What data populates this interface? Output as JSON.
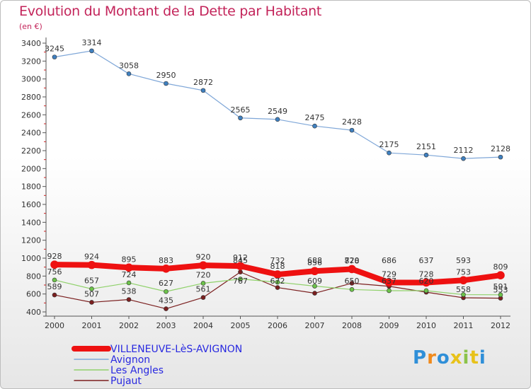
{
  "title": "Evolution du Montant de la Dette par Habitant",
  "subtitle": "(en €)",
  "logo": {
    "letters": [
      "P",
      "r",
      "o",
      "x",
      "i",
      "t",
      "i"
    ],
    "colors": [
      "#2f8fd8",
      "#f08a1c",
      "#2f8fd8",
      "#e8c21a",
      "#8bc34a",
      "#e8c21a",
      "#2f8fd8"
    ]
  },
  "chart_data": {
    "type": "line",
    "x": [
      "2000",
      "2001",
      "2002",
      "2003",
      "2004",
      "2005",
      "2006",
      "2007",
      "2008",
      "2009",
      "2010",
      "2011",
      "2012"
    ],
    "ylim": [
      400,
      3400
    ],
    "yticks": [
      400,
      600,
      800,
      1000,
      1200,
      1400,
      1600,
      1800,
      2000,
      2200,
      2400,
      2600,
      2800,
      3000,
      3200,
      3400
    ],
    "grid": false,
    "legend_position": "bottom-left",
    "series": [
      {
        "name": "Pujaut",
        "color": "#7b1f1f",
        "width": 1.2,
        "marker": "#7b1f1f",
        "values": [
          589,
          507,
          538,
          435,
          561,
          845,
          672,
          609,
          720,
          686,
          620,
          558,
          553
        ],
        "labels": [
          "589",
          "507",
          "538",
          "435",
          "561",
          "",
          "",
          "",
          "",
          "",
          "",
          "558",
          "553"
        ]
      },
      {
        "name": "Les Angles",
        "color": "#8fd16a",
        "width": 1.2,
        "marker": "#6cc24a",
        "values": [
          756,
          657,
          724,
          627,
          720,
          767,
          732,
          688,
          650,
          637,
          637,
          593,
          591
        ],
        "labels": [
          "756",
          "657",
          "724",
          "627",
          "720",
          "",
          "",
          "",
          "",
          "",
          "",
          "",
          "591"
        ]
      },
      {
        "name": "Avignon",
        "color": "#7fa7d8",
        "width": 1.2,
        "marker": "#3f80c0",
        "values": [
          3245,
          3314,
          3058,
          2950,
          2872,
          2565,
          2549,
          2475,
          2428,
          2175,
          2151,
          2112,
          2128
        ],
        "labels": [
          "3245",
          "3314",
          "3058",
          "2950",
          "2872",
          "2565",
          "2549",
          "2475",
          "2428",
          "2175",
          "2151",
          "2112",
          "2128"
        ]
      },
      {
        "name": "VILLENEUVE-LèS-AVIGNON",
        "color": "#ee1111",
        "width": 8,
        "marker": "#ee1111",
        "values": [
          928,
          924,
          895,
          883,
          920,
          912,
          818,
          856,
          878,
          729,
          728,
          753,
          809
        ],
        "labels": [
          "928",
          "924",
          "895",
          "883",
          "920",
          "912",
          "818",
          "856",
          "878",
          "729",
          "728",
          "753",
          "809"
        ]
      }
    ],
    "cluttered_labels": [
      {
        "index": 5,
        "text": "845"
      },
      {
        "index": 5,
        "text": "767"
      },
      {
        "index": 6,
        "text": "732"
      },
      {
        "index": 6,
        "text": "672"
      },
      {
        "index": 7,
        "text": "688"
      },
      {
        "index": 7,
        "text": "609"
      },
      {
        "index": 8,
        "text": "720"
      },
      {
        "index": 8,
        "text": "650"
      },
      {
        "index": 9,
        "text": "686"
      },
      {
        "index": 9,
        "text": "637"
      },
      {
        "index": 10,
        "text": "637"
      },
      {
        "index": 10,
        "text": "620"
      },
      {
        "index": 11,
        "text": "593"
      }
    ],
    "legend": [
      "VILLENEUVE-LèS-AVIGNON",
      "Avignon",
      "Les Angles",
      "Pujaut"
    ],
    "legend_colors": [
      "#ee1111",
      "#7fa7d8",
      "#8fd16a",
      "#7b1f1f"
    ],
    "legend_text_colors": [
      "#2929e0",
      "#2929e0",
      "#2929e0",
      "#2929e0"
    ]
  }
}
